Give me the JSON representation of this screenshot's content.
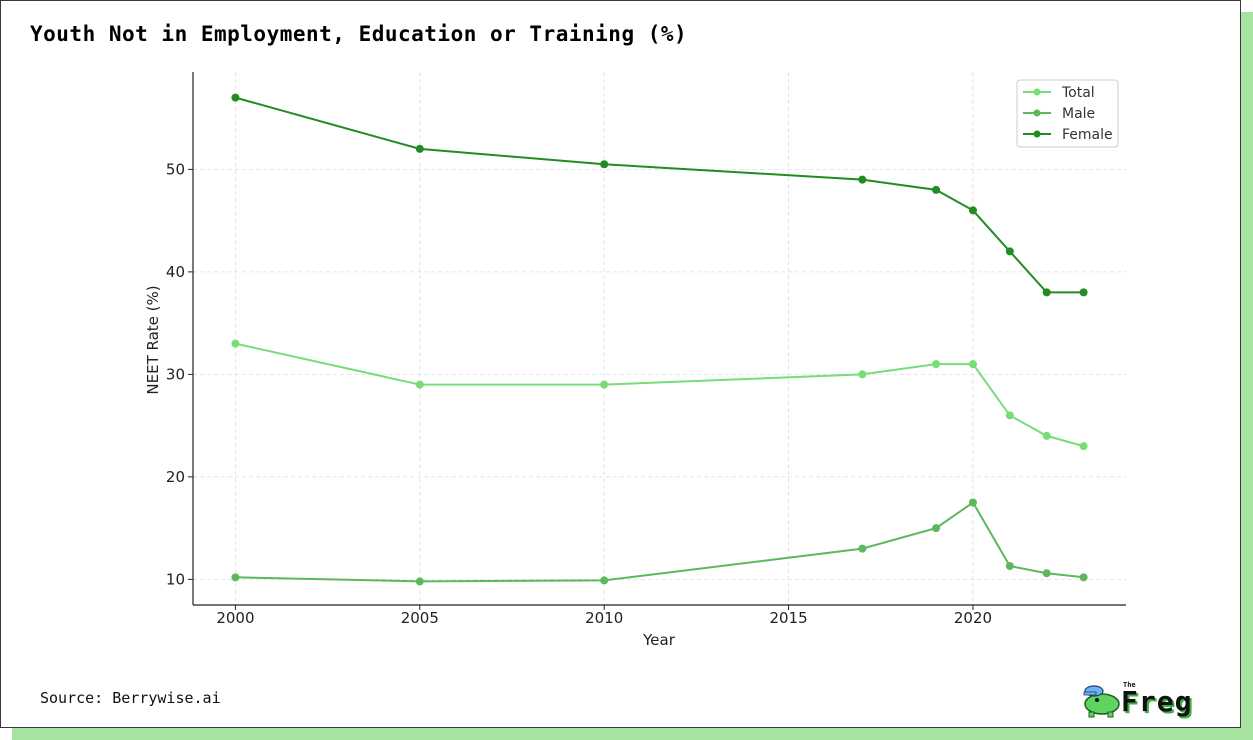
{
  "title": "Youth Not in Employment, Education or Training (%)",
  "source": "Source: Berrywise.ai",
  "logo": {
    "small": "The",
    "word": "Freg"
  },
  "colors": {
    "total": "#77dd77",
    "male": "#5cb85c",
    "female": "#228b22",
    "shadow": "#a6e3a1"
  },
  "chart_data": {
    "type": "line",
    "title": "",
    "xlabel": "Year",
    "ylabel": "NEET Rate (%)",
    "x": [
      2000,
      2005,
      2010,
      2017,
      2019,
      2020,
      2021,
      2022,
      2023
    ],
    "series": [
      {
        "name": "Total",
        "color": "#77dd77",
        "values": [
          33,
          29,
          29,
          30,
          31,
          31,
          26,
          24,
          23
        ]
      },
      {
        "name": "Male",
        "color": "#5cb85c",
        "values": [
          10.2,
          9.8,
          9.9,
          13,
          15,
          17.5,
          11.3,
          10.6,
          10.2
        ]
      },
      {
        "name": "Female",
        "color": "#228b22",
        "values": [
          57,
          52,
          50.5,
          49,
          48,
          46,
          42,
          38,
          38
        ]
      }
    ],
    "xticks": [
      2000,
      2005,
      2010,
      2015,
      2020
    ],
    "yticks": [
      10,
      20,
      30,
      40,
      50
    ],
    "xlim": [
      1998.85,
      2024.15
    ],
    "ylim": [
      7.5,
      59.5
    ],
    "grid": true,
    "legend": "top-right"
  }
}
